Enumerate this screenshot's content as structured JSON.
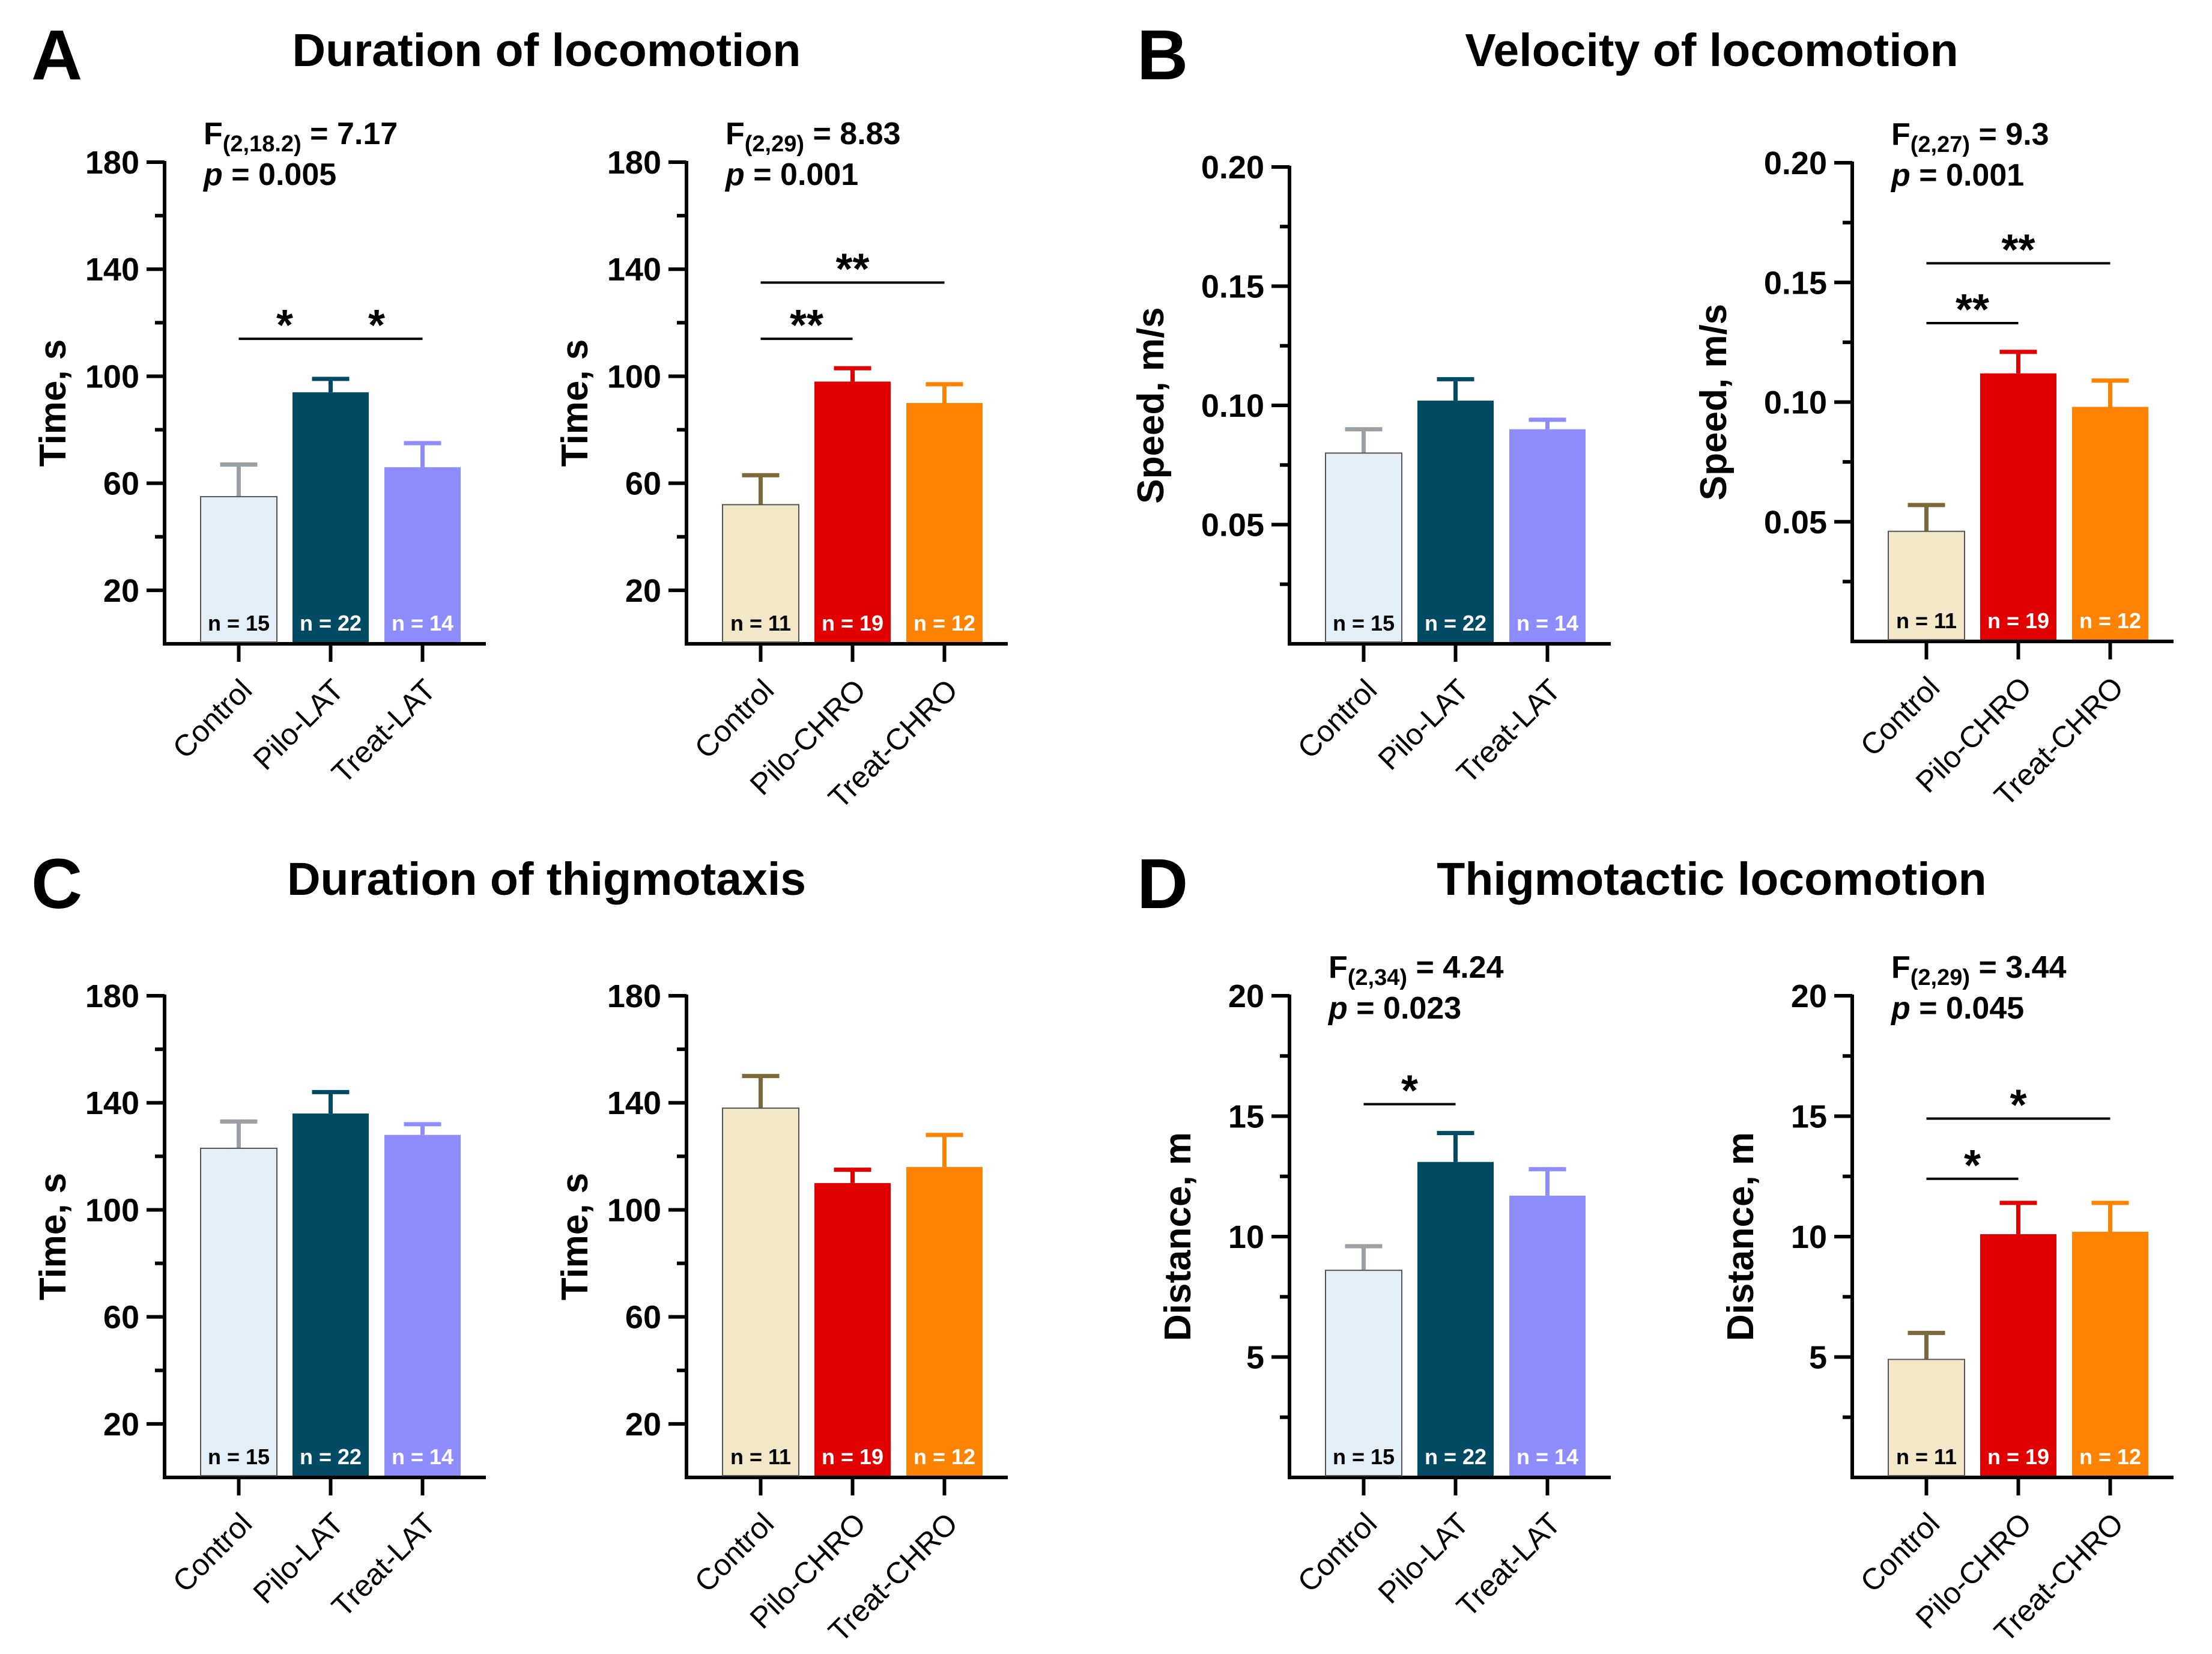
{
  "colors": {
    "Control_LAT": "#e3eef6",
    "Control_CHRO": "#f2e8c8",
    "Pilo-LAT": "#004a63",
    "Treat-LAT": "#8d8dff",
    "Pilo-CHRO": "#e00000",
    "Treat-CHRO": "#ff8200",
    "axis": "#000000"
  },
  "panels": [
    {
      "letter": "A",
      "title": "Duration of locomotion",
      "charts": [
        {
          "id": "A1",
          "ylabel": "Time, s",
          "ylim": [
            0,
            180
          ],
          "yticks": [
            20,
            60,
            100,
            140,
            180
          ],
          "stat": {
            "f": "F",
            "df": "(2,18.2)",
            "fval": " = 7.17",
            "p": "p",
            "pval": " = 0.005"
          },
          "sig": [
            {
              "from": 0,
              "to": 1,
              "y": 114,
              "label": "*"
            },
            {
              "from": 1,
              "to": 2,
              "y": 114,
              "label": "*"
            }
          ]
        },
        {
          "id": "A2",
          "ylabel": "Time, s",
          "ylim": [
            0,
            180
          ],
          "yticks": [
            20,
            60,
            100,
            140,
            180
          ],
          "stat": {
            "f": "F",
            "df": "(2,29)",
            "fval": " = 8.83",
            "p": "p",
            "pval": " = 0.001"
          },
          "sig": [
            {
              "from": 0,
              "to": 1,
              "y": 114,
              "label": "**"
            },
            {
              "from": 0,
              "to": 2,
              "y": 135,
              "label": "**"
            }
          ]
        }
      ]
    },
    {
      "letter": "B",
      "title": "Velocity of locomotion",
      "charts": [
        {
          "id": "B1",
          "ylabel": "Speed, m/s",
          "ylim": [
            0,
            0.2
          ],
          "yticks": [
            0.05,
            0.1,
            0.15,
            0.2
          ],
          "yticklabels": [
            "0.05",
            "0.10",
            "0.15",
            "0.20"
          ],
          "stat": null,
          "sig": []
        },
        {
          "id": "B2",
          "ylabel": "Speed, m/s",
          "ylim": [
            0,
            0.2
          ],
          "yticks": [
            0.05,
            0.1,
            0.15,
            0.2
          ],
          "yticklabels": [
            "0.05",
            "0.10",
            "0.15",
            "0.20"
          ],
          "stat": {
            "f": "F",
            "df": "(2,27)",
            "fval": " = 9.3",
            "p": "p",
            "pval": " = 0.001"
          },
          "sig": [
            {
              "from": 0,
              "to": 1,
              "y": 0.133,
              "label": "**"
            },
            {
              "from": 0,
              "to": 2,
              "y": 0.158,
              "label": "**"
            }
          ]
        }
      ]
    },
    {
      "letter": "C",
      "title": "Duration of thigmotaxis",
      "charts": [
        {
          "id": "C1",
          "ylabel": "Time, s",
          "ylim": [
            0,
            180
          ],
          "yticks": [
            20,
            60,
            100,
            140,
            180
          ],
          "stat": null,
          "sig": []
        },
        {
          "id": "C2",
          "ylabel": "Time, s",
          "ylim": [
            0,
            180
          ],
          "yticks": [
            20,
            60,
            100,
            140,
            180
          ],
          "stat": null,
          "sig": []
        }
      ]
    },
    {
      "letter": "D",
      "title": "Thigmotactic locomotion",
      "charts": [
        {
          "id": "D1",
          "ylabel": "Distance, m",
          "ylim": [
            0,
            20
          ],
          "yticks": [
            5,
            10,
            15,
            20
          ],
          "stat": {
            "f": "F",
            "df": "(2,34)",
            "fval": " = 4.24",
            "p": "p",
            "pval": " = 0.023"
          },
          "sig": [
            {
              "from": 0,
              "to": 1,
              "y": 15.5,
              "label": "*"
            }
          ]
        },
        {
          "id": "D2",
          "ylabel": "Distance, m",
          "ylim": [
            0,
            20
          ],
          "yticks": [
            5,
            10,
            15,
            20
          ],
          "stat": {
            "f": "F",
            "df": "(2,29)",
            "fval": " = 3.44",
            "p": "p",
            "pval": " = 0.045"
          },
          "sig": [
            {
              "from": 0,
              "to": 1,
              "y": 12.4,
              "label": "*"
            },
            {
              "from": 0,
              "to": 2,
              "y": 14.9,
              "label": "*"
            }
          ]
        }
      ]
    }
  ],
  "chart_data": [
    {
      "id": "A1",
      "type": "bar",
      "title": "Duration of locomotion",
      "ylabel": "Time, s",
      "ylim": [
        0,
        180
      ],
      "categories": [
        "Control",
        "Pilo-LAT",
        "Treat-LAT"
      ],
      "values": [
        55,
        94,
        66
      ],
      "errors": [
        12,
        5,
        9
      ],
      "n": [
        "n = 15",
        "n = 22",
        "n = 14"
      ],
      "colorKeys": [
        "Control_LAT",
        "Pilo-LAT",
        "Treat-LAT"
      ]
    },
    {
      "id": "A2",
      "type": "bar",
      "title": "Duration of locomotion",
      "ylabel": "Time, s",
      "ylim": [
        0,
        180
      ],
      "categories": [
        "Control",
        "Pilo-CHRO",
        "Treat-CHRO"
      ],
      "values": [
        52,
        98,
        90
      ],
      "errors": [
        11,
        5,
        7
      ],
      "n": [
        "n = 11",
        "n = 19",
        "n = 12"
      ],
      "colorKeys": [
        "Control_CHRO",
        "Pilo-CHRO",
        "Treat-CHRO"
      ]
    },
    {
      "id": "B1",
      "type": "bar",
      "title": "Velocity of locomotion",
      "ylabel": "Speed, m/s",
      "ylim": [
        0,
        0.2
      ],
      "categories": [
        "Control",
        "Pilo-LAT",
        "Treat-LAT"
      ],
      "values": [
        0.08,
        0.102,
        0.09
      ],
      "errors": [
        0.01,
        0.009,
        0.004
      ],
      "n": [
        "n = 15",
        "n = 22",
        "n = 14"
      ],
      "colorKeys": [
        "Control_LAT",
        "Pilo-LAT",
        "Treat-LAT"
      ]
    },
    {
      "id": "B2",
      "type": "bar",
      "title": "Velocity of locomotion",
      "ylabel": "Speed, m/s",
      "ylim": [
        0,
        0.2
      ],
      "categories": [
        "Control",
        "Pilo-CHRO",
        "Treat-CHRO"
      ],
      "values": [
        0.046,
        0.112,
        0.098
      ],
      "errors": [
        0.011,
        0.009,
        0.011
      ],
      "n": [
        "n = 11",
        "n = 19",
        "n = 12"
      ],
      "colorKeys": [
        "Control_CHRO",
        "Pilo-CHRO",
        "Treat-CHRO"
      ]
    },
    {
      "id": "C1",
      "type": "bar",
      "title": "Duration of thigmotaxis",
      "ylabel": "Time, s",
      "ylim": [
        0,
        180
      ],
      "categories": [
        "Control",
        "Pilo-LAT",
        "Treat-LAT"
      ],
      "values": [
        123,
        136,
        128
      ],
      "errors": [
        10,
        8,
        4
      ],
      "n": [
        "n = 15",
        "n = 22",
        "n = 14"
      ],
      "colorKeys": [
        "Control_LAT",
        "Pilo-LAT",
        "Treat-LAT"
      ]
    },
    {
      "id": "C2",
      "type": "bar",
      "title": "Duration of thigmotaxis",
      "ylabel": "Time, s",
      "ylim": [
        0,
        180
      ],
      "categories": [
        "Control",
        "Pilo-CHRO",
        "Treat-CHRO"
      ],
      "values": [
        138,
        110,
        116
      ],
      "errors": [
        12,
        5,
        12
      ],
      "n": [
        "n = 11",
        "n = 19",
        "n = 12"
      ],
      "colorKeys": [
        "Control_CHRO",
        "Pilo-CHRO",
        "Treat-CHRO"
      ]
    },
    {
      "id": "D1",
      "type": "bar",
      "title": "Thigmotactic locomotion",
      "ylabel": "Distance, m",
      "ylim": [
        0,
        20
      ],
      "categories": [
        "Control",
        "Pilo-LAT",
        "Treat-LAT"
      ],
      "values": [
        8.6,
        13.1,
        11.7
      ],
      "errors": [
        1.0,
        1.2,
        1.1
      ],
      "n": [
        "n = 15",
        "n = 22",
        "n = 14"
      ],
      "colorKeys": [
        "Control_LAT",
        "Pilo-LAT",
        "Treat-LAT"
      ]
    },
    {
      "id": "D2",
      "type": "bar",
      "title": "Thigmotactic locomotion",
      "ylabel": "Distance, m",
      "ylim": [
        0,
        20
      ],
      "categories": [
        "Control",
        "Pilo-CHRO",
        "Treat-CHRO"
      ],
      "values": [
        4.9,
        10.1,
        10.2
      ],
      "errors": [
        1.1,
        1.3,
        1.2
      ],
      "n": [
        "n = 11",
        "n = 19",
        "n = 12"
      ],
      "colorKeys": [
        "Control_CHRO",
        "Pilo-CHRO",
        "Treat-CHRO"
      ]
    }
  ]
}
